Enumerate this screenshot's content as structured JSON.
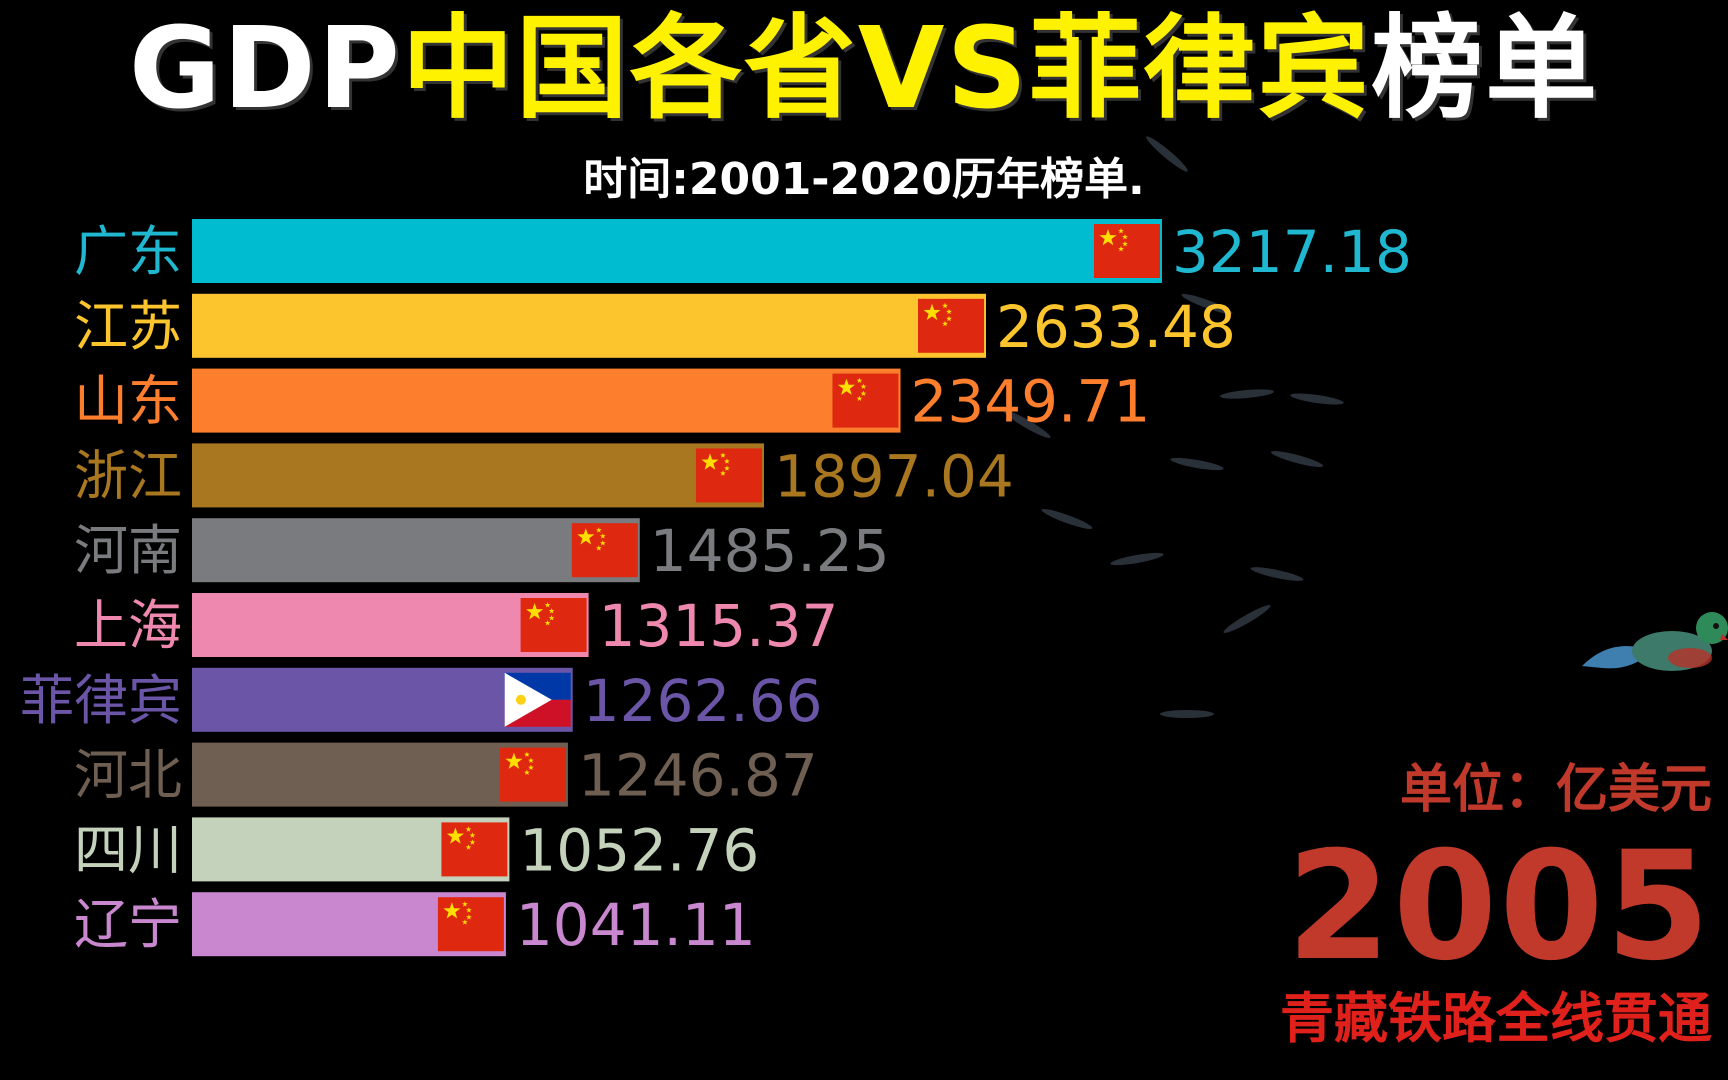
{
  "title": {
    "part1": "GDP",
    "part2": "中国各省VS菲律宾",
    "part3": "榜单",
    "subtitle": "时间:2001-2020历年榜单."
  },
  "colors": {
    "title_white": "#ffffff",
    "title_yellow": "#fff200",
    "accent_red": "#c0392b"
  },
  "unit_label": "单位：亿美元",
  "year": "2005",
  "event": "青藏铁路全线贯通",
  "chart_data": {
    "type": "bar",
    "orientation": "horizontal",
    "categories": [
      "广东",
      "江苏",
      "山东",
      "浙江",
      "河南",
      "上海",
      "菲律宾",
      "河北",
      "四川",
      "辽宁"
    ],
    "values": [
      3217.18,
      2633.48,
      2349.71,
      1897.04,
      1485.25,
      1315.37,
      1262.66,
      1246.87,
      1052.76,
      1041.11
    ],
    "value_labels": [
      "3217.18",
      "2633.48",
      "2349.71",
      "1897.04",
      "1485.25",
      "1315.37",
      "1262.66",
      "1246.87",
      "1052.76",
      "1041.11"
    ],
    "flags": [
      "cn-flag-icon",
      "cn-flag-icon",
      "cn-flag-icon",
      "cn-flag-icon",
      "cn-flag-icon",
      "cn-flag-icon",
      "ph-flag-icon",
      "cn-flag-icon",
      "cn-flag-icon",
      "cn-flag-icon"
    ],
    "colors": [
      "#00bcd0",
      "#fdc52d",
      "#fd7f2d",
      "#a8771f",
      "#7a7b7f",
      "#ef88ae",
      "#6a55a7",
      "#6e5f52",
      "#c4d2bc",
      "#c987d0"
    ],
    "label_colors": [
      "#1fb8d0",
      "#fdc52d",
      "#fd7f2d",
      "#a8771f",
      "#7a7b7f",
      "#ef88ae",
      "#6a55a7",
      "#6e5f52",
      "#c4d2bc",
      "#c987d0"
    ]
  }
}
